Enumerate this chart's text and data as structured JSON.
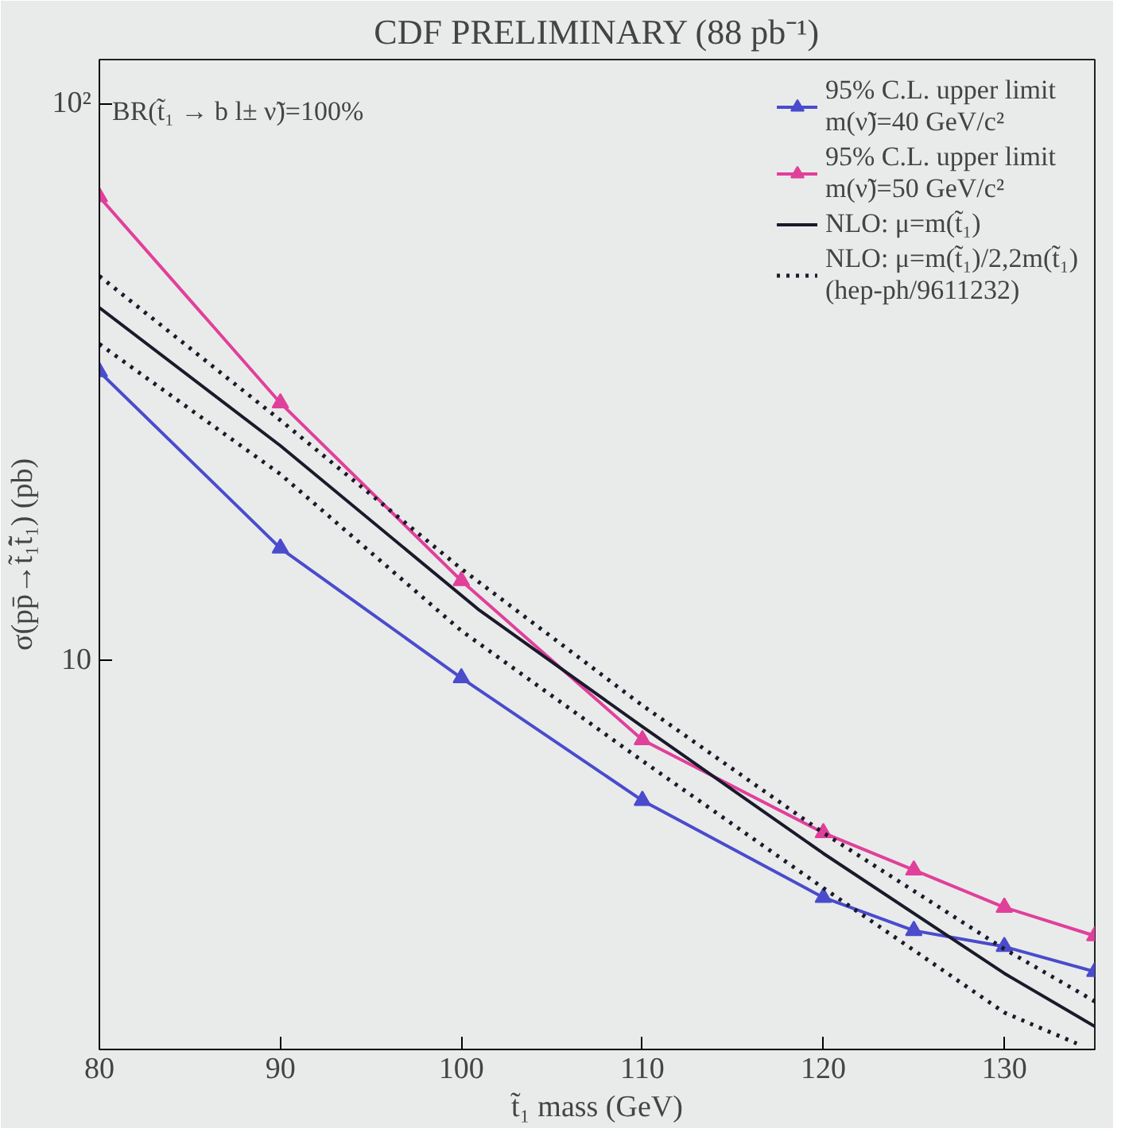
{
  "chart_data": {
    "type": "line",
    "title": "CDF PRELIMINARY (88 pb⁻¹)",
    "xlabel": "t̃₁ mass (GeV)",
    "ylabel": "σ(pp̄→t̃₁t̃̄₁) (pb)",
    "log": "y",
    "xlim": [
      80,
      135
    ],
    "ylim": [
      2,
      120
    ],
    "xticks": [
      80,
      90,
      100,
      110,
      120,
      130
    ],
    "yticks": [
      10,
      {
        "value": 100,
        "label": "10²"
      }
    ],
    "grid": false,
    "legend": "top right",
    "annotations": [
      "BR(t̃₁ → b l± ν̃)=100%"
    ],
    "series": [
      {
        "name": "95% C.L. upper limit\nm(ν̃)=40 GeV/c²",
        "color": "#4a4ccc",
        "marker": "triangle",
        "line_style": "solid",
        "x": [
          80,
          90,
          100,
          110,
          120,
          125,
          130,
          135
        ],
        "values": [
          33,
          15.9,
          9.3,
          5.6,
          3.75,
          3.27,
          3.06,
          2.76
        ]
      },
      {
        "name": "95% C.L. upper limit\nm(ν̃)=50 GeV/c²",
        "color": "#e0409a",
        "marker": "triangle",
        "line_style": "solid",
        "x": [
          80,
          90,
          100,
          110,
          120,
          125,
          130,
          135
        ],
        "values": [
          68,
          29,
          13.9,
          7.2,
          4.9,
          4.2,
          3.6,
          3.2
        ]
      },
      {
        "name": "NLO: μ=m(t̃₁)",
        "color": "#1a1a2a",
        "marker": "none",
        "line_style": "solid",
        "x": [
          80,
          90,
          101,
          110,
          120,
          130,
          135
        ],
        "values": [
          43,
          24.3,
          12.3,
          7.6,
          4.5,
          2.74,
          2.2
        ]
      },
      {
        "name": "NLO: μ=m(t̃₁)/2,2m(t̃₁)\n(hep-ph/9611232)",
        "color": "#1a1a2a",
        "marker": "none",
        "line_style": "dotted",
        "x": [
          80,
          90,
          100,
          110,
          120,
          130,
          135
        ],
        "values": [
          49,
          27,
          14.6,
          8.3,
          4.9,
          3.03,
          2.44
        ]
      },
      {
        "color": "#1a1a2a",
        "marker": "none",
        "line_style": "dotted",
        "x": [
          80,
          90,
          100,
          110,
          120,
          130,
          134
        ],
        "values": [
          37,
          21.6,
          11.3,
          6.6,
          3.9,
          2.33,
          2.05
        ]
      }
    ]
  }
}
